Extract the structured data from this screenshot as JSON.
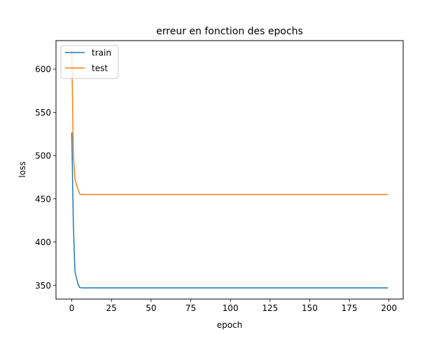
{
  "chart_data": {
    "type": "line",
    "title": "erreur en fonction des epochs",
    "xlabel": "epoch",
    "ylabel": "loss",
    "xlim": [
      -9.95,
      208.95
    ],
    "ylim": [
      334,
      633
    ],
    "xticks": [
      0,
      25,
      50,
      75,
      100,
      125,
      150,
      175,
      200
    ],
    "yticks": [
      350,
      400,
      450,
      500,
      550,
      600
    ],
    "grid": false,
    "legend": {
      "position": "top-left",
      "entries": [
        "train",
        "test"
      ]
    },
    "series": [
      {
        "name": "train",
        "color": "#1f77b4",
        "x": [
          0,
          1,
          2,
          3,
          4,
          5,
          6,
          7,
          10,
          20,
          50,
          100,
          150,
          199
        ],
        "y": [
          526,
          420,
          366,
          358,
          351,
          347.5,
          347,
          347,
          347,
          347,
          347,
          347,
          347,
          347
        ]
      },
      {
        "name": "test",
        "color": "#ff7f0e",
        "x": [
          0,
          1,
          2,
          3,
          4,
          5,
          6,
          7,
          10,
          20,
          50,
          100,
          150,
          199
        ],
        "y": [
          620,
          500,
          473,
          466,
          460,
          455.5,
          455,
          455,
          455,
          455,
          455,
          455,
          455,
          455
        ]
      }
    ]
  }
}
